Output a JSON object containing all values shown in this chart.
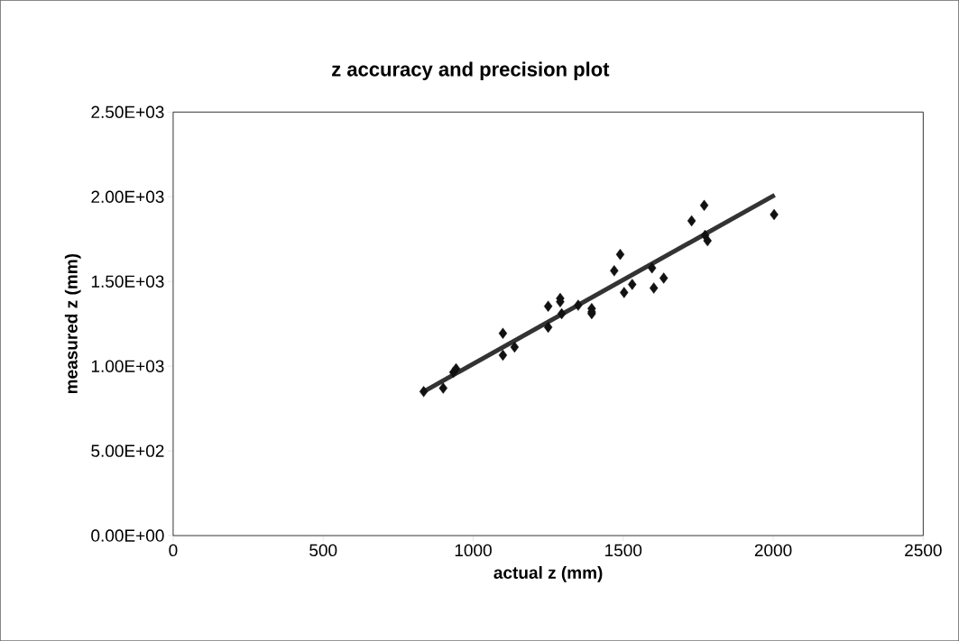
{
  "chart_data": {
    "type": "scatter",
    "title": "z accuracy and precision plot",
    "xlabel": "actual z (mm)",
    "ylabel": "measured z (mm)",
    "xlim": [
      0,
      2500
    ],
    "xticks": [
      0,
      500,
      1000,
      1500,
      2000,
      2500
    ],
    "ylim": [
      0,
      2500
    ],
    "yticks": [
      {
        "value": 0,
        "label": "0.00E+00"
      },
      {
        "value": 500,
        "label": "5.00E+02"
      },
      {
        "value": 1000,
        "label": "1.00E+03"
      },
      {
        "value": 1500,
        "label": "1.50E+03"
      },
      {
        "value": 2000,
        "label": "2.00E+03"
      },
      {
        "value": 2500,
        "label": "2.50E+03"
      }
    ],
    "grid": false,
    "marker": "diamond",
    "series": [
      {
        "color": "#111111",
        "x": [
          835,
          900,
          934,
          943,
          1099,
          1099,
          1138,
          1250,
          1250,
          1290,
          1290,
          1295,
          1350,
          1395,
          1395,
          1395,
          1470,
          1490,
          1503,
          1530,
          1596,
          1602,
          1635,
          1728,
          1770,
          1773,
          1781,
          2003
        ],
        "values": [
          850,
          870,
          964,
          985,
          1194,
          1065,
          1113,
          1230,
          1354,
          1400,
          1380,
          1310,
          1360,
          1340,
          1320,
          1310,
          1563,
          1660,
          1435,
          1483,
          1580,
          1461,
          1520,
          1858,
          1949,
          1772,
          1740,
          1895
        ]
      },
      {
        "type": "line",
        "color": "#333333",
        "marker": "none",
        "line_style": "solid",
        "x": [
          835,
          2005
        ],
        "values": [
          850,
          2010
        ]
      }
    ]
  }
}
